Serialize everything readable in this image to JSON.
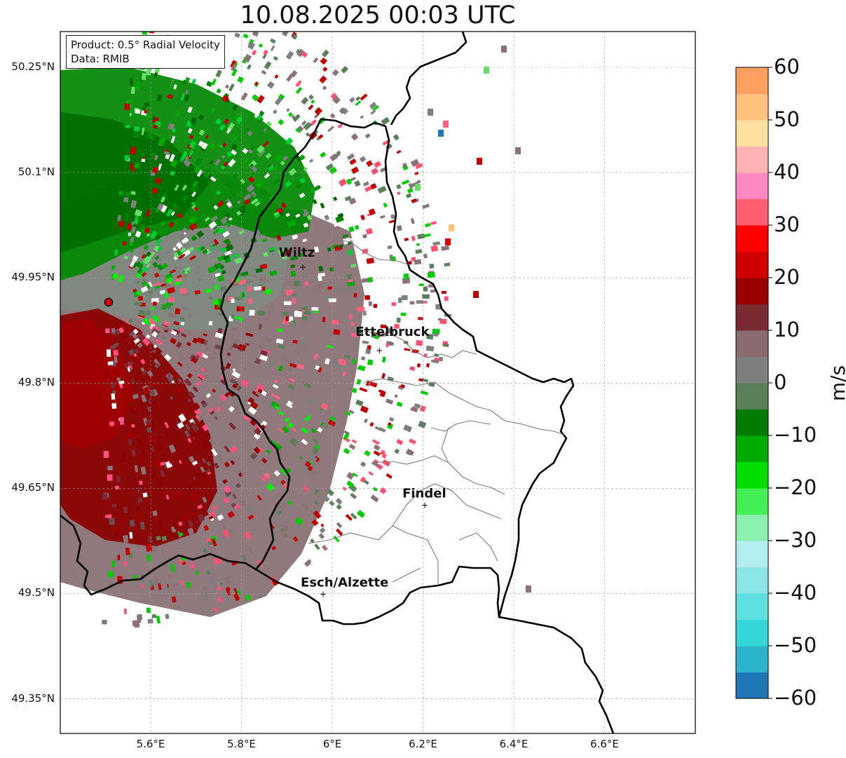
{
  "title": "10.08.2025 00:03 UTC",
  "info": {
    "product": "Product: 0.5° Radial Velocity",
    "data": "Data: RMIB"
  },
  "map": {
    "lon_range": [
      5.4,
      6.8
    ],
    "lat_range": [
      49.3,
      50.3
    ],
    "lon_ticks": [
      "5.6°E",
      "5.8°E",
      "6°E",
      "6.2°E",
      "6.4°E",
      "6.6°E"
    ],
    "lat_ticks": [
      "50.25°N",
      "50.1°N",
      "49.95°N",
      "49.8°N",
      "49.65°N",
      "49.5°N",
      "49.35°N"
    ],
    "grid": true,
    "radar_site": {
      "lon": 5.505,
      "lat": 49.914
    },
    "cities": [
      {
        "name": "Wiltz",
        "lon": 5.935,
        "lat": 49.966
      },
      {
        "name": "Ettelbruck",
        "lon": 6.104,
        "lat": 49.847
      },
      {
        "name": "Findel",
        "lon": 6.204,
        "lat": 49.627
      },
      {
        "name": "Esch/Alzette",
        "lon": 5.98,
        "lat": 49.5
      }
    ]
  },
  "colorbar": {
    "unit": "m/s",
    "ticks": [
      "60",
      "50",
      "40",
      "30",
      "20",
      "10",
      "0",
      "−10",
      "−20",
      "−30",
      "−40",
      "−50",
      "−60"
    ],
    "min": -60,
    "max": 60,
    "colors": [
      "#1f78b4",
      "#2bb3cc",
      "#34d6d8",
      "#5fe0e0",
      "#8ae6e6",
      "#b3eeee",
      "#8af0b0",
      "#44ee55",
      "#00dd00",
      "#00aa00",
      "#007a00",
      "#5a7f5a",
      "#7f7f7f",
      "#8a6a6f",
      "#7a2a30",
      "#9a0000",
      "#d00000",
      "#ff0000",
      "#ff6070",
      "#ff88c0",
      "#ffb3b3",
      "#ffe0a0",
      "#ffc080",
      "#ffa060"
    ]
  }
}
